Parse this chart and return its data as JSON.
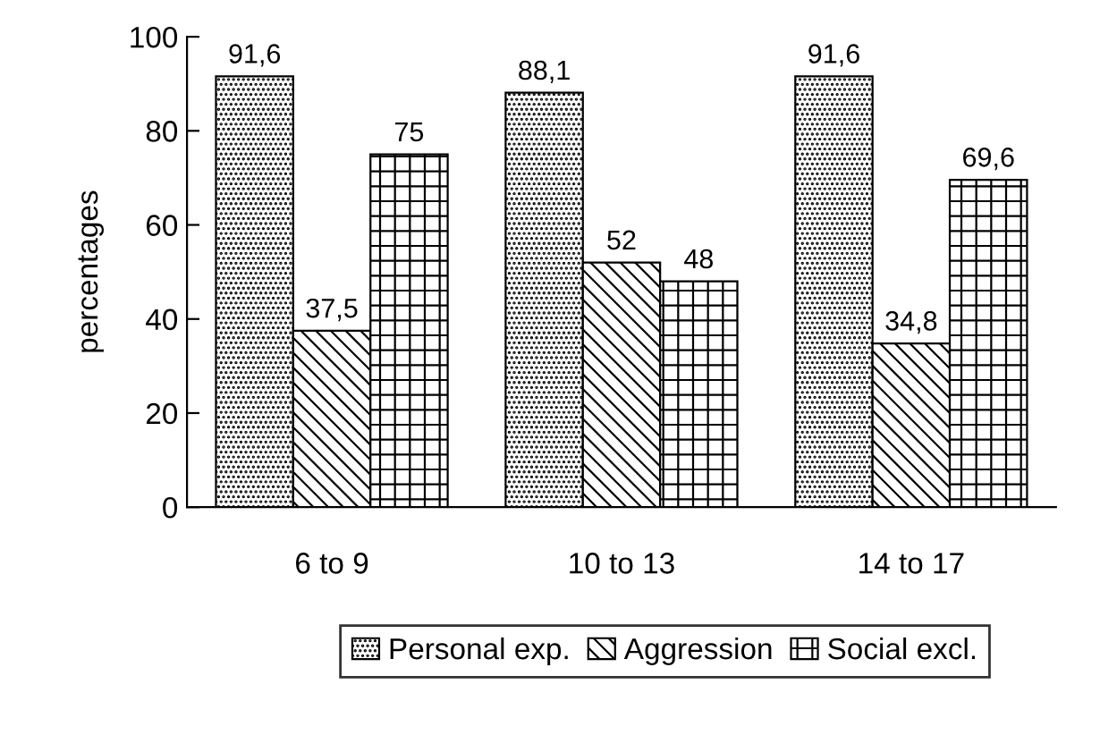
{
  "chart_data": {
    "type": "bar",
    "ylabel": "percentages",
    "categories": [
      "6 to 9",
      "10 to 13",
      "14 to 17"
    ],
    "series": [
      {
        "name": "Personal exp.",
        "color": "#000000",
        "values": [
          91.6,
          88.1,
          91.6
        ],
        "value_labels": [
          "91,6",
          "88,1",
          "91,6"
        ]
      },
      {
        "name": "Aggression",
        "color": "#000000",
        "values": [
          37.5,
          52,
          34.8
        ],
        "value_labels": [
          "37,5",
          "52",
          "34,8"
        ]
      },
      {
        "name": "Social excl.",
        "color": "#000000",
        "values": [
          75,
          48,
          69.6
        ],
        "value_labels": [
          "75",
          "48",
          "69,6"
        ]
      }
    ],
    "ylim": [
      0,
      100
    ],
    "yticks": [
      0,
      20,
      40,
      60,
      80,
      100
    ],
    "grid": false,
    "legend": "bottom"
  }
}
